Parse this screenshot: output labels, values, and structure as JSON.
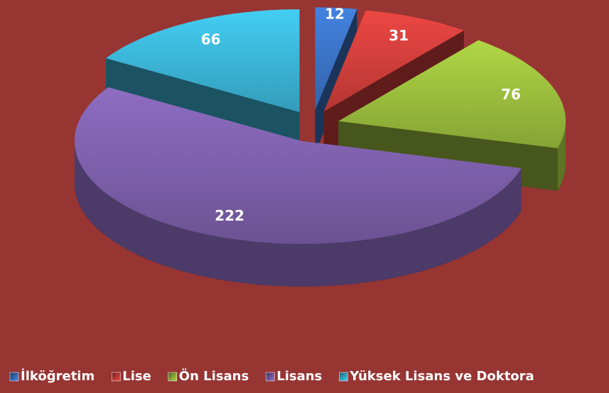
{
  "chart_data": {
    "type": "pie",
    "categories": [
      "İlköğretim",
      "Lise",
      "Ön Lisans",
      "Lisans",
      "Yüksek Lisans ve Doktora"
    ],
    "values": [
      12,
      31,
      76,
      222,
      66
    ],
    "colors": [
      "#3c74c8",
      "#d43f3c",
      "#9dc03e",
      "#7f61ad",
      "#3cb8da"
    ],
    "legend": "bottom"
  }
}
